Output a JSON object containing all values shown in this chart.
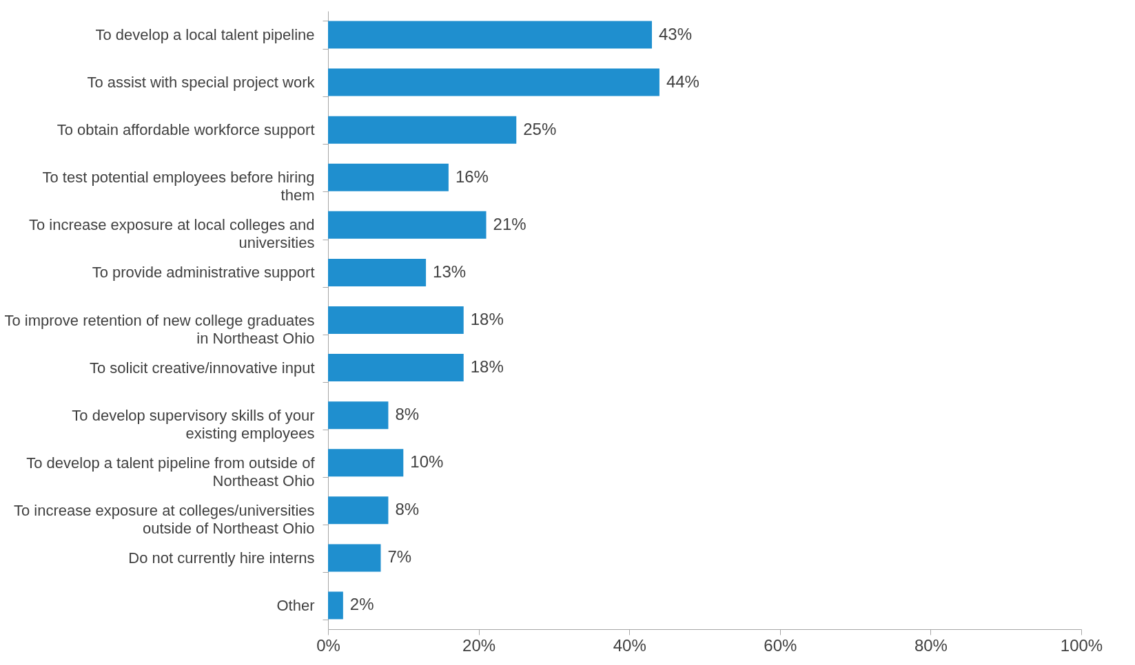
{
  "chart_data": {
    "type": "bar",
    "orientation": "horizontal",
    "categories": [
      "To develop a local talent pipeline",
      "To assist with special project work",
      "To obtain affordable workforce support",
      "To test potential employees before hiring them",
      "To increase exposure at local colleges and universities",
      "To provide administrative support",
      "To improve retention of new college graduates in Northeast Ohio",
      "To solicit creative/innovative input",
      "To develop supervisory skills of your existing employees",
      "To develop a talent pipeline from outside of Northeast Ohio",
      "To increase exposure at colleges/universities outside of Northeast Ohio",
      "Do not currently hire interns",
      "Other"
    ],
    "values": [
      43,
      44,
      25,
      16,
      21,
      13,
      18,
      18,
      8,
      10,
      8,
      7,
      2
    ],
    "value_labels": [
      "43%",
      "44%",
      "25%",
      "16%",
      "21%",
      "13%",
      "18%",
      "18%",
      "8%",
      "10%",
      "8%",
      "7%",
      "2%"
    ],
    "color": "#1f8fcf",
    "xlim": [
      0,
      100
    ],
    "xticks": [
      {
        "value": 0,
        "label": "0%"
      },
      {
        "value": 20,
        "label": "20%"
      },
      {
        "value": 40,
        "label": "40%"
      },
      {
        "value": 60,
        "label": "60%"
      },
      {
        "value": 80,
        "label": "80%"
      },
      {
        "value": 100,
        "label": "100%"
      }
    ],
    "grid": false
  }
}
